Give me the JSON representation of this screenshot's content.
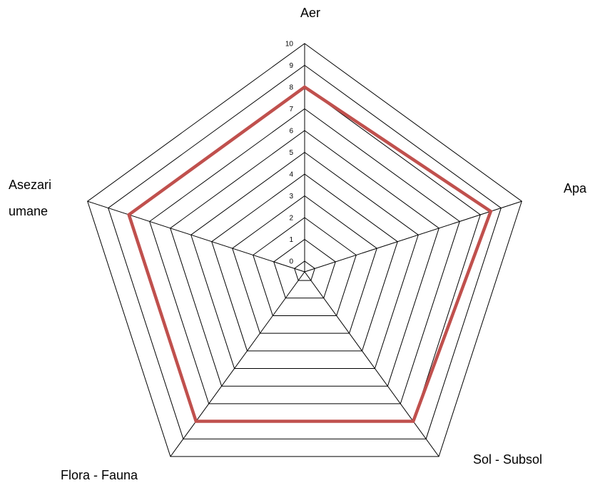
{
  "chart_data": {
    "type": "radar",
    "categories": [
      "Aer",
      "Apa",
      "Sol - Subsol",
      "Flora - Fauna",
      "Asezari umane"
    ],
    "category_label_lines": [
      [
        "Aer"
      ],
      [
        "Apa"
      ],
      [
        "Sol - Subsol"
      ],
      [
        "Flora - Fauna"
      ],
      [
        "Asezari",
        "umane"
      ]
    ],
    "rlim": [
      0,
      10
    ],
    "ticks": [
      0,
      1,
      2,
      3,
      4,
      5,
      6,
      7,
      8,
      9,
      10
    ],
    "tick_labels": [
      "0",
      "1",
      "2",
      "3",
      "4",
      "5",
      "6",
      "7",
      "8",
      "9",
      "10"
    ],
    "series": [
      {
        "values": [
          8,
          8.5,
          8,
          8,
          8
        ],
        "color": "#c0504d"
      }
    ],
    "grid": true,
    "legend": "none"
  }
}
